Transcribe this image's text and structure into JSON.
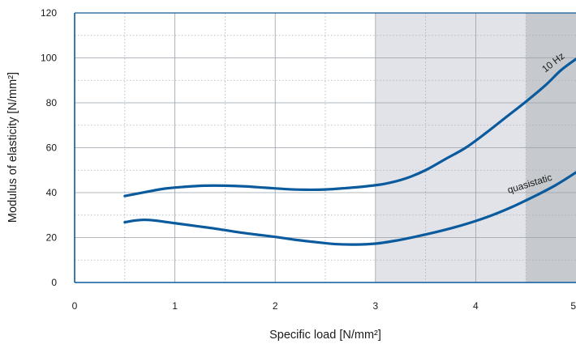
{
  "chart_data": {
    "type": "line",
    "title": "",
    "xlabel": "Specific load [N/mm²]",
    "ylabel": "Modulus of elasticity [N/mm²]",
    "xlim": [
      0,
      5
    ],
    "ylim": [
      0,
      120
    ],
    "x_ticks": [
      "0",
      "1",
      "2",
      "3",
      "4",
      "5"
    ],
    "y_ticks": [
      "0",
      "20",
      "40",
      "60",
      "80",
      "100",
      "120"
    ],
    "grid": true,
    "shaded_regions": [
      {
        "x_from": 3,
        "x_to": 4.5,
        "color": "#e1e3e8"
      },
      {
        "x_from": 4.5,
        "x_to": 5,
        "color": "#c6cacf"
      }
    ],
    "line_color": "#0a5a9e",
    "series": [
      {
        "name": "10 Hz",
        "points": [
          [
            0.5,
            38.5
          ],
          [
            0.7,
            40.2
          ],
          [
            0.9,
            41.8
          ],
          [
            1.1,
            42.6
          ],
          [
            1.3,
            43.1
          ],
          [
            1.5,
            43.1
          ],
          [
            1.7,
            42.8
          ],
          [
            1.9,
            42.2
          ],
          [
            2.1,
            41.6
          ],
          [
            2.3,
            41.3
          ],
          [
            2.5,
            41.4
          ],
          [
            2.7,
            42.0
          ],
          [
            2.9,
            42.8
          ],
          [
            3.1,
            44.0
          ],
          [
            3.3,
            46.3
          ],
          [
            3.5,
            50.0
          ],
          [
            3.7,
            55.0
          ],
          [
            3.9,
            60.0
          ],
          [
            4.1,
            66.5
          ],
          [
            4.3,
            73.5
          ],
          [
            4.5,
            80.5
          ],
          [
            4.7,
            88.0
          ],
          [
            4.85,
            94.5
          ],
          [
            5.0,
            99.5
          ]
        ]
      },
      {
        "name": "quasistatic",
        "points": [
          [
            0.5,
            26.8
          ],
          [
            0.6,
            27.6
          ],
          [
            0.7,
            27.9
          ],
          [
            0.8,
            27.6
          ],
          [
            1.0,
            26.4
          ],
          [
            1.2,
            25.2
          ],
          [
            1.4,
            24.0
          ],
          [
            1.6,
            22.6
          ],
          [
            1.8,
            21.4
          ],
          [
            2.0,
            20.3
          ],
          [
            2.2,
            19.0
          ],
          [
            2.4,
            18.0
          ],
          [
            2.6,
            17.1
          ],
          [
            2.8,
            16.9
          ],
          [
            3.0,
            17.3
          ],
          [
            3.2,
            18.6
          ],
          [
            3.4,
            20.4
          ],
          [
            3.6,
            22.4
          ],
          [
            3.8,
            24.7
          ],
          [
            4.0,
            27.4
          ],
          [
            4.2,
            30.6
          ],
          [
            4.4,
            34.4
          ],
          [
            4.6,
            38.7
          ],
          [
            4.8,
            43.4
          ],
          [
            5.0,
            49.0
          ]
        ]
      }
    ]
  }
}
